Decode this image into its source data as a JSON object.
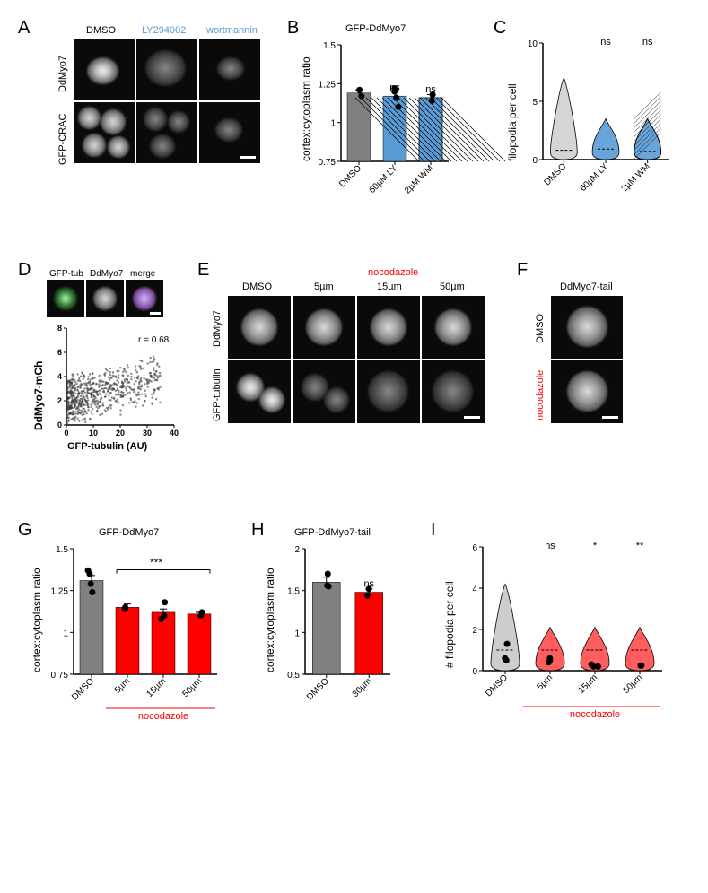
{
  "panelA": {
    "label": "A",
    "col_headers": [
      "DMSO",
      "LY294002",
      "wortmannin"
    ],
    "col_header_colors": [
      "#000000",
      "#5a9bd5",
      "#5a9bd5"
    ],
    "row_headers": [
      "DdMyo7",
      "GFP-CRAC"
    ]
  },
  "panelB": {
    "label": "B",
    "title": "GFP-DdMyo7",
    "ylabel": "cortex:cytoplasm ratio",
    "ylim": [
      0.75,
      1.5
    ],
    "yticks": [
      0.75,
      1.0,
      1.25,
      1.5
    ],
    "categories": [
      "DMSO",
      "60µM LY",
      "2µM WM"
    ],
    "values": [
      1.19,
      1.17,
      1.16
    ],
    "errors": [
      0.02,
      0.03,
      0.02
    ],
    "bar_colors": [
      "#808080",
      "#5a9bd5",
      "#5a9bd5"
    ],
    "bar_hatched": [
      false,
      false,
      true
    ],
    "sig": [
      "",
      "ns",
      "ns"
    ],
    "points": [
      [
        1.21,
        1.17
      ],
      [
        1.2,
        1.16,
        1.22,
        1.1
      ],
      [
        1.18,
        1.14
      ]
    ]
  },
  "panelC": {
    "label": "C",
    "ylabel": "filopodia per cell",
    "ylim": [
      0,
      10
    ],
    "yticks": [
      0,
      5,
      10
    ],
    "categories": [
      "DMSO",
      "60µM LY",
      "2µM WM"
    ],
    "sig": [
      "",
      "ns",
      "ns"
    ],
    "violin_colors": [
      "#d0d0d0",
      "#5a9bd5",
      "#5a9bd5"
    ],
    "violin_hatched": [
      false,
      false,
      true
    ],
    "violin_medians": [
      0.8,
      0.9,
      0.7
    ]
  },
  "panelD": {
    "label": "D",
    "img_headers": [
      "GFP-tub",
      "DdMyo7",
      "merge"
    ],
    "xlabel": "GFP-tubulin (AU)",
    "ylabel": "DdMyo7-mCh",
    "xlim": [
      0,
      40
    ],
    "xticks": [
      0,
      10,
      20,
      30,
      40
    ],
    "ylim": [
      0,
      8
    ],
    "yticks": [
      0,
      2,
      4,
      6,
      8
    ],
    "r_text": "r = 0.68",
    "scatter_color": "#3a3a3a"
  },
  "panelE": {
    "label": "E",
    "top_header": "nocodazole",
    "top_header_color": "#ff0000",
    "col_headers": [
      "DMSO",
      "5µm",
      "15µm",
      "50µm"
    ],
    "row_headers": [
      "DdMyo7",
      "GFP-tubulin"
    ]
  },
  "panelF": {
    "label": "F",
    "title": "DdMyo7-tail",
    "row_headers": [
      "DMSO",
      "nocodazole"
    ],
    "row_header_colors": [
      "#000000",
      "#ff0000"
    ]
  },
  "panelG": {
    "label": "G",
    "title": "GFP-DdMyo7",
    "ylabel": "cortex:cytoplasm ratio",
    "ylim": [
      0.75,
      1.5
    ],
    "yticks": [
      0.75,
      1.0,
      1.25,
      1.5
    ],
    "categories": [
      "DMSO",
      "5µm",
      "15µm",
      "50µm"
    ],
    "bottom_label": "nocodazole",
    "bottom_label_color": "#ff0000",
    "values": [
      1.31,
      1.15,
      1.12,
      1.11
    ],
    "errors": [
      0.03,
      0.02,
      0.02,
      0.01
    ],
    "bar_colors": [
      "#808080",
      "#ff0000",
      "#ff0000",
      "#ff0000"
    ],
    "sig_bracket": "***",
    "points": [
      [
        1.37,
        1.35,
        1.29,
        1.24
      ],
      [
        1.15,
        1.14
      ],
      [
        1.18,
        1.1,
        1.08
      ],
      [
        1.12,
        1.1
      ]
    ]
  },
  "panelH": {
    "label": "H",
    "title": "GFP-DdMyo7-tail",
    "ylabel": "cortex:cytoplasm ratio",
    "ylim": [
      0.5,
      2.0
    ],
    "yticks": [
      0.5,
      1.0,
      1.5,
      2.0
    ],
    "categories": [
      "DMSO",
      "30µm"
    ],
    "bar_colors": [
      "#808080",
      "#ff0000"
    ],
    "values": [
      1.6,
      1.48
    ],
    "errors": [
      0.06,
      0.04
    ],
    "sig": [
      "",
      "ns"
    ],
    "points": [
      [
        1.7,
        1.56,
        1.55
      ],
      [
        1.52,
        1.44
      ]
    ]
  },
  "panelI": {
    "label": "I",
    "ylabel": "# filopodia per cell",
    "ylim": [
      0,
      6
    ],
    "yticks": [
      0,
      2,
      4,
      6
    ],
    "categories": [
      "DMSO",
      "5µm",
      "15µm",
      "50µm"
    ],
    "bottom_label": "nocodazole",
    "bottom_label_color": "#ff0000",
    "violin_colors": [
      "#c8c8c8",
      "#ff4d4d",
      "#ff4d4d",
      "#ff4d4d"
    ],
    "sig": [
      "",
      "ns",
      "*",
      "**"
    ],
    "points": [
      [
        1.3,
        0.6,
        0.5
      ],
      [
        0.6,
        0.5,
        0.4
      ],
      [
        0.2,
        0.3,
        0.2
      ],
      [
        0.25,
        0.25
      ]
    ]
  },
  "colors": {
    "axis": "#000000",
    "bg": "#ffffff",
    "point": "#000000"
  }
}
